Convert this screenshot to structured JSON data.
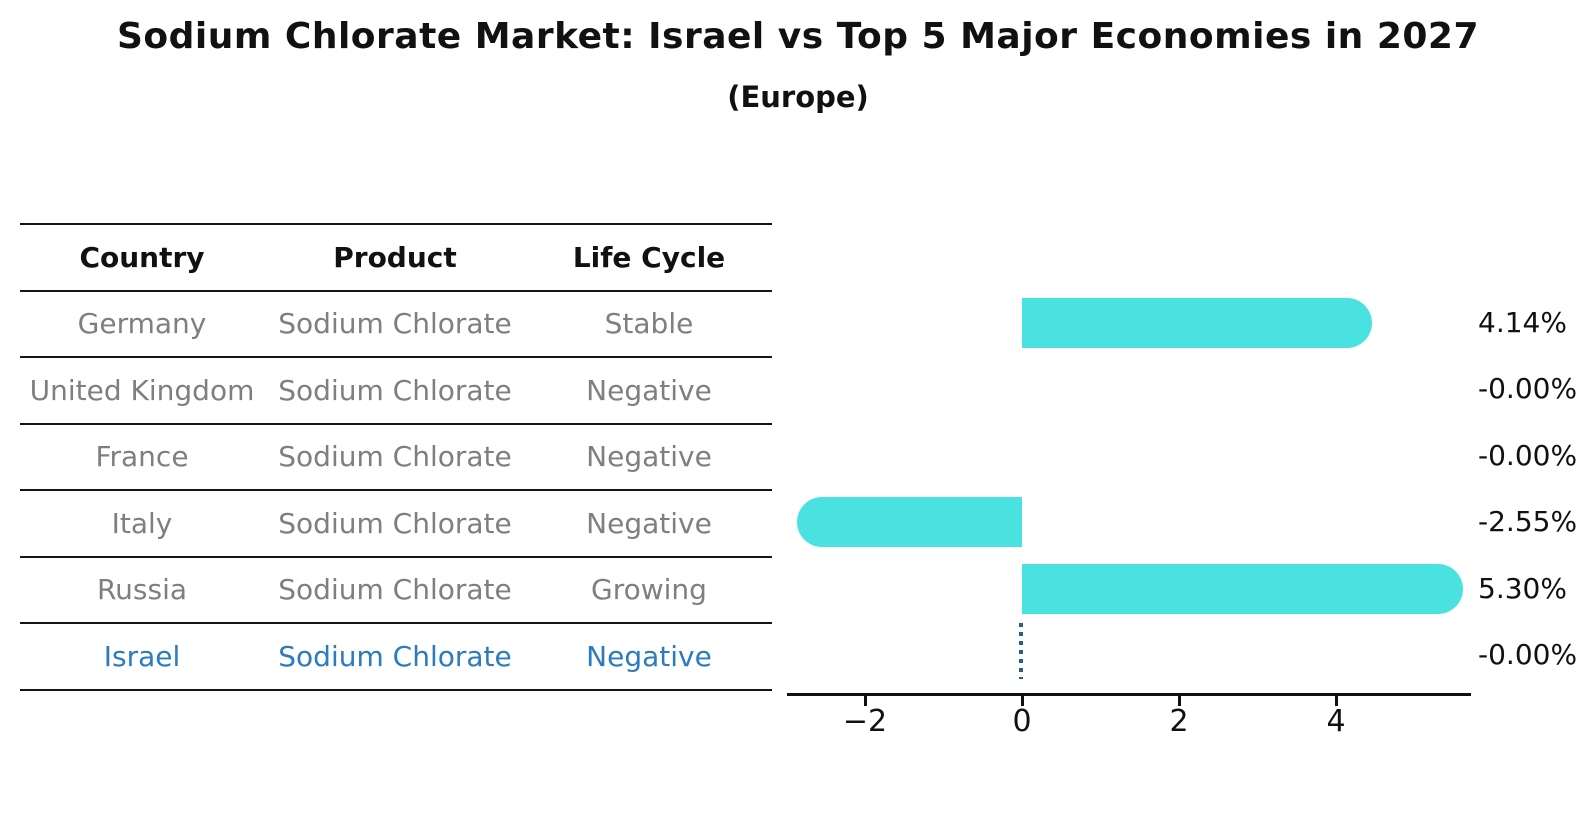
{
  "header": {
    "title": "Sodium Chlorate Market: Israel vs Top 5 Major Economies in 2027",
    "subtitle": "(Europe)"
  },
  "table": {
    "columns": [
      "Country",
      "Product",
      "Life Cycle"
    ],
    "rows": [
      {
        "country": "Germany",
        "product": "Sodium Chlorate",
        "life_cycle": "Stable",
        "highlight": false
      },
      {
        "country": "United Kingdom",
        "product": "Sodium Chlorate",
        "life_cycle": "Negative",
        "highlight": false
      },
      {
        "country": "France",
        "product": "Sodium Chlorate",
        "life_cycle": "Negative",
        "highlight": false
      },
      {
        "country": "Italy",
        "product": "Sodium Chlorate",
        "life_cycle": "Negative",
        "highlight": false
      },
      {
        "country": "Russia",
        "product": "Sodium Chlorate",
        "life_cycle": "Growing",
        "highlight": false
      },
      {
        "country": "Israel",
        "product": "Sodium Chlorate",
        "life_cycle": "Negative",
        "highlight": true
      }
    ]
  },
  "chart_data": {
    "type": "bar",
    "orientation": "horizontal",
    "title": "Sodium Chlorate Market: Israel vs Top 5 Major Economies in 2027",
    "subtitle": "(Europe)",
    "categories": [
      "Germany",
      "United Kingdom",
      "France",
      "Italy",
      "Russia",
      "Israel"
    ],
    "values": [
      4.14,
      -0.0,
      -0.0,
      -2.55,
      5.3,
      -0.0
    ],
    "value_labels": [
      "4.14%",
      "-0.00%",
      "-0.00%",
      "-2.55%",
      "5.30%",
      "-0.00%"
    ],
    "unit": "%",
    "xlim": [
      -3,
      5.75
    ],
    "x_ticks": [
      -2,
      0,
      2,
      4
    ],
    "x_tick_labels": [
      "−2",
      "0",
      "2",
      "4"
    ],
    "grid": false,
    "legend": false,
    "highlight_index": 5,
    "highlight_marker": "dotted zero line"
  },
  "colors": {
    "bar": "#49E2E0",
    "highlight_text": "#2b7bc0",
    "row_text": "#7f7f7f",
    "header_text": "#111111",
    "axis": "#111111",
    "dotted_marker": "#2b5c8a",
    "background": "#ffffff"
  }
}
